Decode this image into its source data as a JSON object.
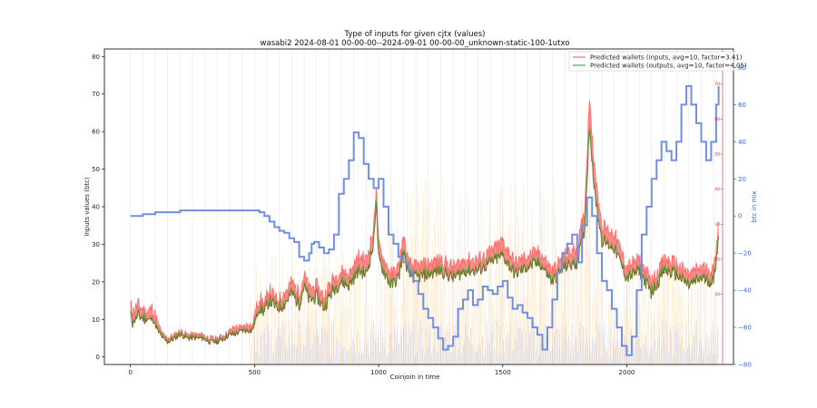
{
  "chart_data": {
    "type": "line",
    "title": "Type of inputs for given cjtx (values)",
    "subtitle": "wasabi2 2024-08-01 00-00-00--2024-09-01 00-00-00_unknown-static-100-1utxo",
    "xlabel": "Coinjoin in time",
    "ylabel": "Inputs values (btc)",
    "y2label": "btc in mix",
    "xlim": [
      -105,
      2430
    ],
    "ylim": [
      -2,
      82
    ],
    "y2lim": [
      -80,
      90
    ],
    "y3lim": [
      -10,
      80
    ],
    "x_ticks": [
      0,
      500,
      1000,
      1500,
      2000
    ],
    "y_ticks": [
      0,
      10,
      20,
      30,
      40,
      50,
      60,
      70,
      80
    ],
    "y2_ticks": [
      -80,
      -60,
      -40,
      -20,
      0,
      20,
      40,
      60,
      80
    ],
    "y3_ticks": [
      10,
      20,
      30,
      40,
      50,
      60,
      70
    ],
    "grid": "vertical-only",
    "legend_position": "top-right",
    "colors": {
      "inputs": "#ff6a6a",
      "inputs_fill": "#ff2a2a",
      "outputs": "#4caf50",
      "overlap": "#7a6a1e",
      "mix": "#6f8fe0",
      "mix_axis": "#3f63d8",
      "right_red_axis": "#d62728",
      "bars_orange": "#f5b041",
      "bars_blue": "#8a9ef0",
      "vgrid": "#d9d9d9"
    },
    "series": [
      {
        "name": "Predicted wallets (inputs, avg=10, factor=3.41)",
        "axis": "left",
        "x": [
          0,
          10,
          30,
          60,
          90,
          110,
          130,
          150,
          180,
          200,
          230,
          260,
          290,
          320,
          350,
          380,
          400,
          420,
          450,
          480,
          490,
          500,
          520,
          540,
          560,
          590,
          620,
          650,
          680,
          700,
          720,
          750,
          780,
          800,
          820,
          850,
          880,
          900,
          920,
          950,
          980,
          990,
          1000,
          1020,
          1050,
          1080,
          1100,
          1120,
          1150,
          1200,
          1250,
          1300,
          1350,
          1400,
          1450,
          1500,
          1550,
          1600,
          1650,
          1700,
          1750,
          1800,
          1830,
          1850,
          1870,
          1900,
          1950,
          2000,
          2050,
          2100,
          2150,
          2200,
          2250,
          2300,
          2350,
          2370
        ],
        "values": [
          14,
          12,
          14,
          12,
          13,
          9,
          6,
          5,
          6,
          7,
          6,
          6,
          6,
          5,
          5,
          6,
          7,
          8,
          8,
          9,
          8,
          11,
          16,
          14,
          18,
          15,
          17,
          20,
          17,
          22,
          18,
          19,
          16,
          19,
          21,
          23,
          22,
          24,
          27,
          26,
          34,
          46,
          30,
          26,
          22,
          24,
          32,
          25,
          24,
          25,
          26,
          24,
          26,
          26,
          28,
          31,
          25,
          27,
          28,
          23,
          27,
          29,
          39,
          70,
          50,
          35,
          33,
          24,
          26,
          20,
          26,
          25,
          22,
          24,
          23,
          36
        ]
      },
      {
        "name": "Predicted wallets (outputs, avg=10, factor=4.05)",
        "axis": "left",
        "x": [
          0,
          10,
          30,
          60,
          90,
          110,
          130,
          150,
          180,
          200,
          230,
          260,
          290,
          320,
          350,
          380,
          400,
          420,
          450,
          480,
          490,
          500,
          520,
          540,
          560,
          590,
          620,
          650,
          680,
          700,
          720,
          750,
          780,
          800,
          820,
          850,
          880,
          900,
          920,
          950,
          980,
          990,
          1000,
          1020,
          1050,
          1080,
          1100,
          1120,
          1150,
          1200,
          1250,
          1300,
          1350,
          1400,
          1450,
          1500,
          1550,
          1600,
          1650,
          1700,
          1750,
          1800,
          1830,
          1850,
          1870,
          1900,
          1950,
          2000,
          2050,
          2100,
          2150,
          2200,
          2250,
          2300,
          2350,
          2370
        ],
        "values": [
          11,
          9,
          11,
          10,
          10,
          7,
          5,
          4,
          5,
          6,
          5,
          5,
          5,
          4,
          4,
          5,
          6,
          6,
          7,
          7,
          7,
          9,
          13,
          12,
          15,
          13,
          14,
          17,
          14,
          19,
          15,
          16,
          13,
          16,
          18,
          20,
          19,
          21,
          23,
          22,
          30,
          42,
          26,
          23,
          19,
          21,
          28,
          22,
          21,
          22,
          23,
          21,
          23,
          23,
          25,
          27,
          22,
          24,
          25,
          20,
          24,
          25,
          34,
          62,
          44,
          31,
          29,
          21,
          23,
          17,
          23,
          22,
          19,
          21,
          20,
          32
        ]
      },
      {
        "name": "btc in mix",
        "axis": "right",
        "x": [
          0,
          50,
          100,
          200,
          300,
          400,
          500,
          520,
          540,
          560,
          580,
          600,
          620,
          640,
          660,
          680,
          700,
          720,
          730,
          740,
          760,
          780,
          800,
          820,
          840,
          860,
          880,
          900,
          920,
          940,
          960,
          980,
          1000,
          1020,
          1040,
          1060,
          1080,
          1100,
          1120,
          1140,
          1160,
          1180,
          1200,
          1220,
          1240,
          1260,
          1280,
          1300,
          1320,
          1340,
          1360,
          1380,
          1400,
          1420,
          1440,
          1460,
          1480,
          1500,
          1520,
          1540,
          1560,
          1580,
          1600,
          1620,
          1640,
          1660,
          1680,
          1700,
          1720,
          1740,
          1760,
          1780,
          1800,
          1820,
          1840,
          1860,
          1880,
          1900,
          1920,
          1940,
          1960,
          1980,
          2000,
          2020,
          2040,
          2060,
          2080,
          2100,
          2120,
          2140,
          2160,
          2180,
          2200,
          2220,
          2240,
          2260,
          2280,
          2300,
          2320,
          2340,
          2360,
          2370
        ],
        "values": [
          0,
          1,
          2,
          3,
          3,
          3,
          3,
          2,
          0,
          -3,
          -6,
          -8,
          -9,
          -12,
          -14,
          -22,
          -24,
          -20,
          -15,
          -14,
          -17,
          -20,
          -18,
          -10,
          12,
          20,
          30,
          45,
          42,
          28,
          20,
          15,
          20,
          5,
          -10,
          -15,
          -22,
          -25,
          -30,
          -35,
          -42,
          -50,
          -55,
          -60,
          -66,
          -72,
          -70,
          -65,
          -50,
          -45,
          -40,
          -48,
          -45,
          -38,
          -40,
          -42,
          -38,
          -35,
          -44,
          -50,
          -48,
          -52,
          -55,
          -60,
          -64,
          -72,
          -60,
          -45,
          -30,
          -20,
          -15,
          -10,
          -25,
          -5,
          10,
          0,
          -20,
          -35,
          -40,
          -50,
          -60,
          -70,
          -75,
          -65,
          -40,
          -10,
          5,
          20,
          30,
          40,
          35,
          30,
          40,
          60,
          70,
          60,
          50,
          40,
          30,
          40,
          60,
          70
        ]
      }
    ]
  },
  "legend": {
    "inputs_label": "Predicted wallets (inputs, avg=10, factor=3.41)",
    "outputs_label": "Predicted wallets (outputs, avg=10, factor=4.05)"
  }
}
